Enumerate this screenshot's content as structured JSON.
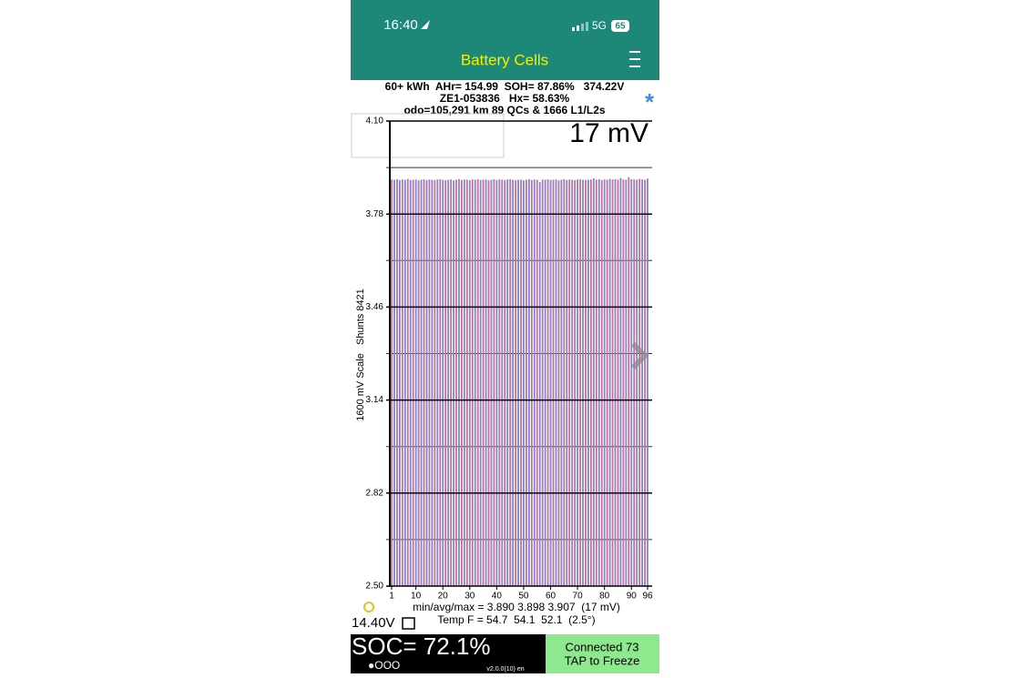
{
  "status_bar": {
    "time": "16:40",
    "network": "5G",
    "battery": "65"
  },
  "header": {
    "title": "Battery Cells"
  },
  "info": {
    "line1": "60+ kWh  AHr= 154.99  SOH= 87.86%   374.22V",
    "line2": "ZE1-053836   Hx= 58.63%",
    "line3": "odo=105,291 km 89 QCs & 1666 L1/L2s",
    "spread": "17 mV"
  },
  "chart_data": {
    "type": "bar",
    "ylabel": "1600 mV Scale   Shunts 8421",
    "ylim": [
      2.5,
      4.1
    ],
    "yticks": [
      {
        "value": 4.1,
        "label": "4.10"
      },
      3.78,
      3.46,
      3.14,
      2.82,
      {
        "value": 2.5,
        "label": "2.50"
      }
    ],
    "minor_yticks": [
      3.94,
      3.62,
      3.3,
      2.98,
      2.66
    ],
    "xlim": [
      1,
      96
    ],
    "xticks": [
      1,
      10,
      20,
      30,
      40,
      50,
      60,
      70,
      80,
      90,
      96
    ],
    "color": "#c8708c",
    "alt_color": "#7d86d9",
    "values": [
      3.899,
      3.898,
      3.9,
      3.897,
      3.899,
      3.898,
      3.901,
      3.897,
      3.898,
      3.899,
      3.896,
      3.898,
      3.9,
      3.897,
      3.899,
      3.898,
      3.897,
      3.899,
      3.9,
      3.898,
      3.897,
      3.898,
      3.899,
      3.896,
      3.898,
      3.9,
      3.897,
      3.899,
      3.898,
      3.897,
      3.899,
      3.898,
      3.9,
      3.897,
      3.898,
      3.899,
      3.896,
      3.898,
      3.9,
      3.897,
      3.899,
      3.898,
      3.897,
      3.899,
      3.9,
      3.898,
      3.897,
      3.898,
      3.899,
      3.896,
      3.898,
      3.9,
      3.897,
      3.899,
      3.898,
      3.89,
      3.899,
      3.898,
      3.9,
      3.897,
      3.898,
      3.899,
      3.896,
      3.898,
      3.9,
      3.897,
      3.899,
      3.898,
      3.897,
      3.899,
      3.9,
      3.898,
      3.897,
      3.898,
      3.899,
      3.903,
      3.898,
      3.9,
      3.897,
      3.899,
      3.898,
      3.901,
      3.899,
      3.9,
      3.898,
      3.904,
      3.899,
      3.898,
      3.907,
      3.9,
      3.899,
      3.898,
      3.901,
      3.899,
      3.898,
      3.902
    ]
  },
  "footer": {
    "stats": "min/avg/max = 3.890 3.898 3.907  (17 mV)",
    "temp": "Temp F = 54.7  54.1  52.1  (2.5°)",
    "aux_voltage": "14.40V",
    "soc": "SOC= 72.1%",
    "dots": "●OOO",
    "version": "v2.0.0(10) en",
    "connection": "Connected 73",
    "action": "TAP to Freeze"
  }
}
